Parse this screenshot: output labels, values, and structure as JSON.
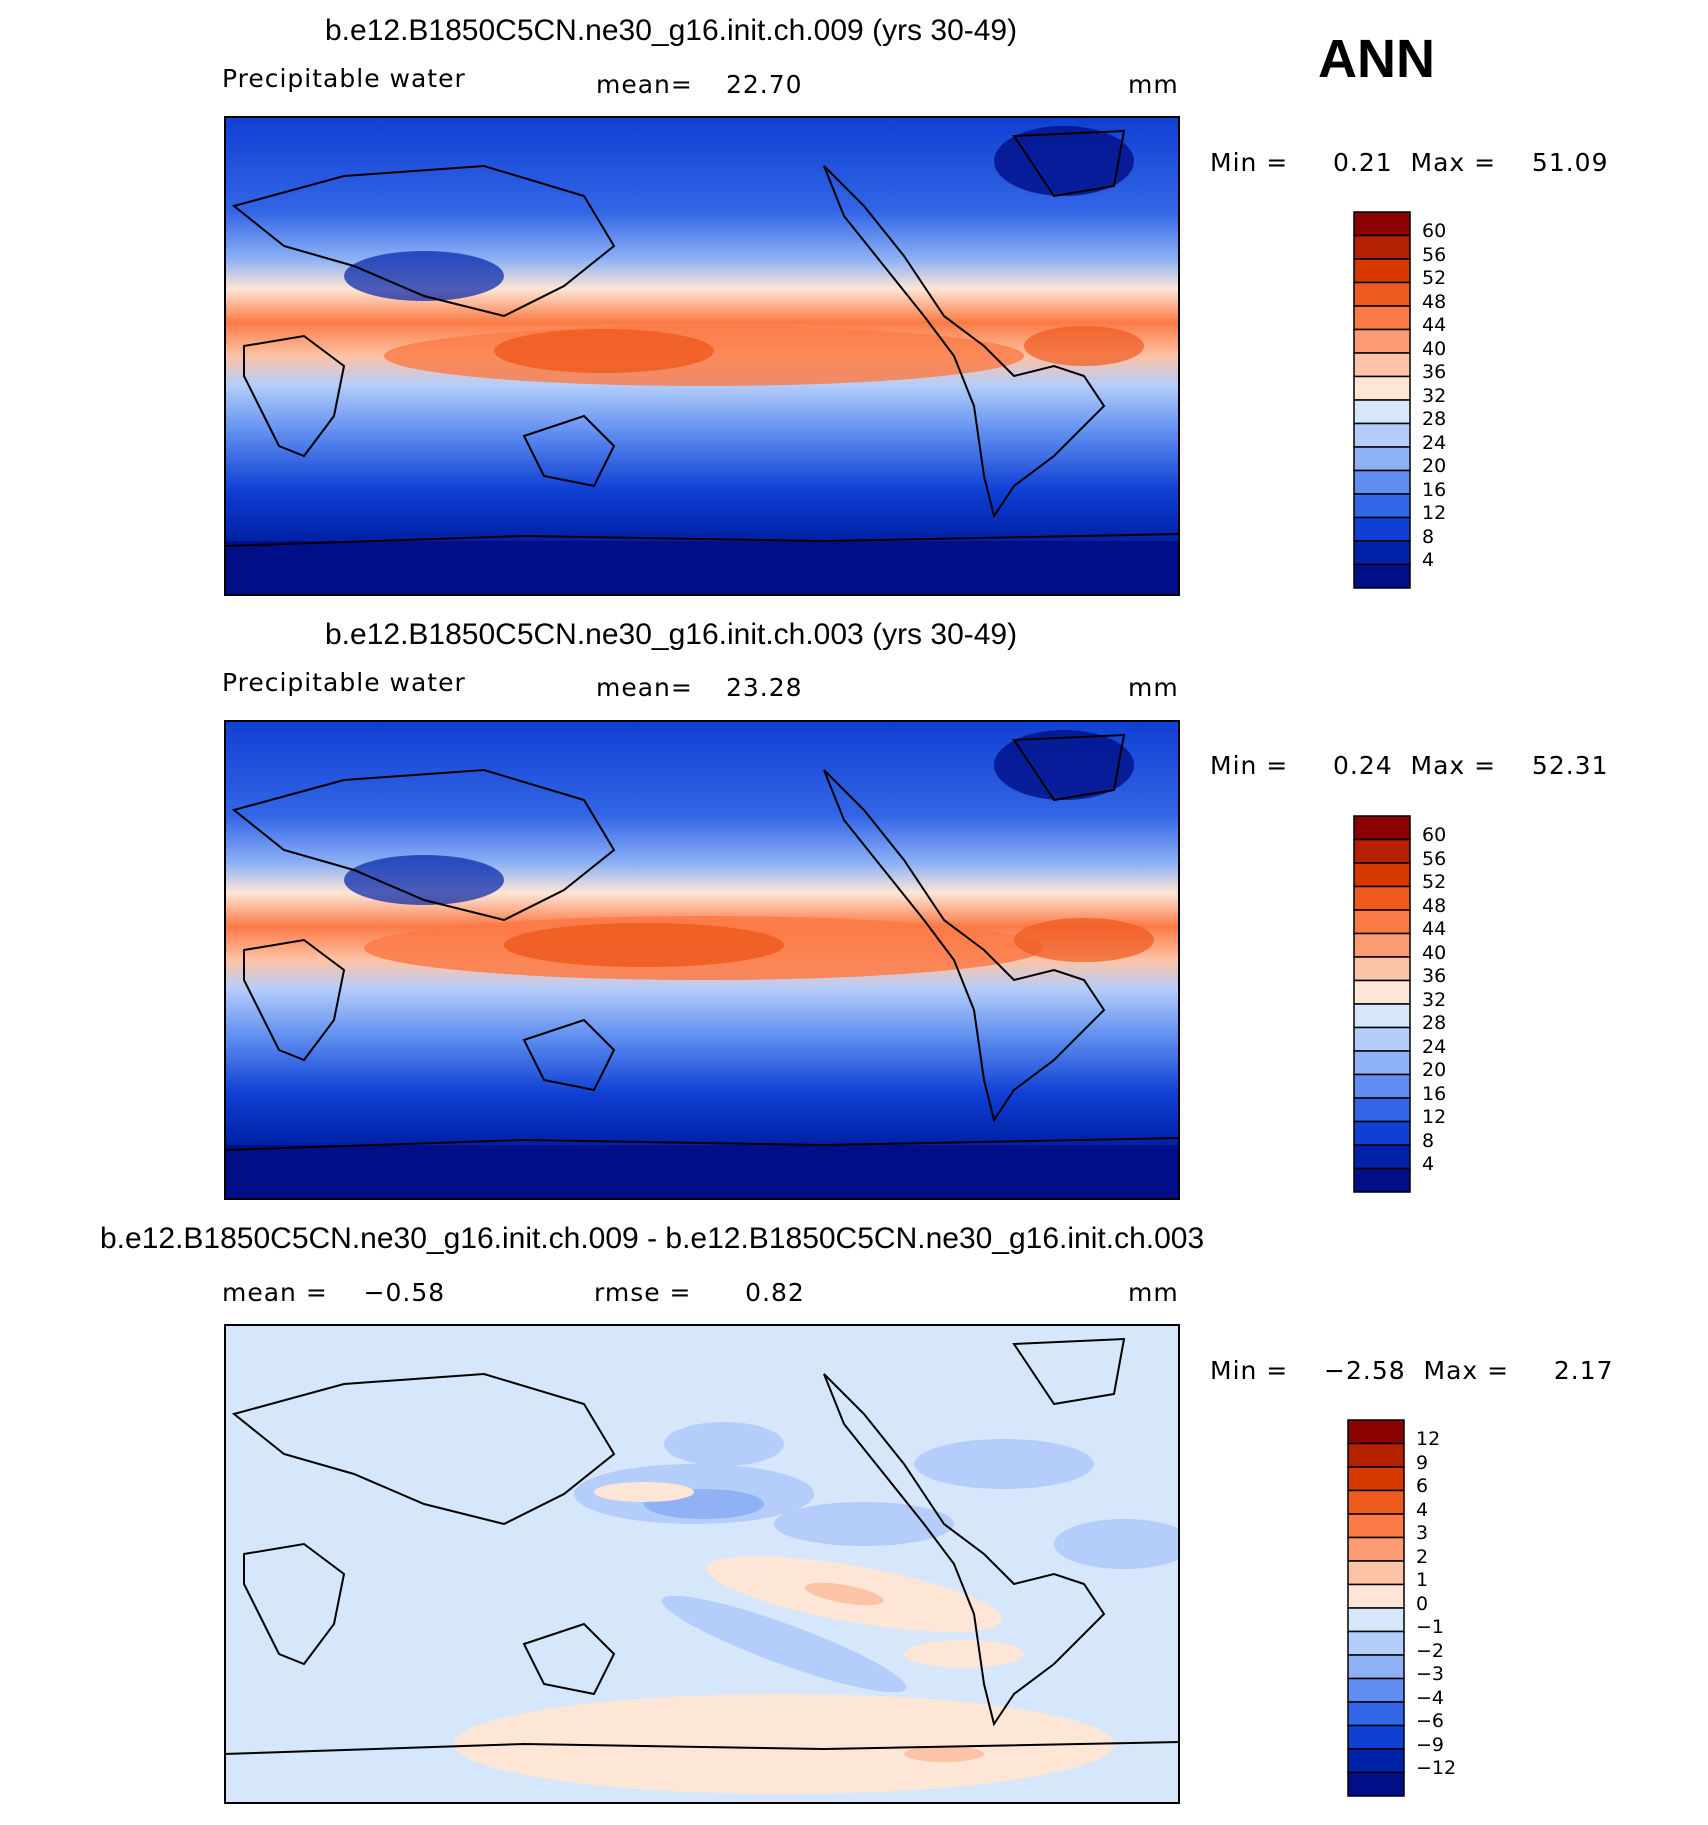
{
  "season": "ANN",
  "panels": [
    {
      "title": "b.e12.B1850C5CN.ne30_g16.init.ch.009 (yrs 30-49)",
      "variable": "Precipitable water",
      "stat_label": "mean=",
      "stat_value": "22.70",
      "units": "mm",
      "range_text": "Min =     0.21  Max =    51.09",
      "colorbar_labels": [
        "60",
        "56",
        "52",
        "48",
        "44",
        "40",
        "36",
        "32",
        "28",
        "24",
        "20",
        "16",
        "12",
        "8",
        "4"
      ]
    },
    {
      "title": "b.e12.B1850C5CN.ne30_g16.init.ch.003 (yrs 30-49)",
      "variable": "Precipitable water",
      "stat_label": "mean=",
      "stat_value": "23.28",
      "units": "mm",
      "range_text": "Min =     0.24  Max =    52.31",
      "colorbar_labels": [
        "60",
        "56",
        "52",
        "48",
        "44",
        "40",
        "36",
        "32",
        "28",
        "24",
        "20",
        "16",
        "12",
        "8",
        "4"
      ]
    },
    {
      "title": "b.e12.B1850C5CN.ne30_g16.init.ch.009 - b.e12.B1850C5CN.ne30_g16.init.ch.003",
      "mean_text": "mean =    −0.58",
      "rmse_text": "rmse =      0.82",
      "units": "mm",
      "range_text": "Min =    −2.58  Max =     2.17",
      "colorbar_labels": [
        "12",
        "9",
        "6",
        "4",
        "3",
        "2",
        "1",
        "0",
        "−1",
        "−2",
        "−3",
        "−4",
        "−6",
        "−9",
        "−12"
      ]
    }
  ],
  "colors": {
    "warm_ramp": [
      "#8b0000",
      "#b52000",
      "#d73800",
      "#ef5a1e",
      "#fb7a46",
      "#fc9c74",
      "#fdc3a6",
      "#fde6d6",
      "#d6e6fb",
      "#b5cdfa",
      "#8fb2f6",
      "#5f8ef0",
      "#3366e6",
      "#0f3fd3",
      "#0022a8",
      "#000f87"
    ],
    "land_outline": "#000000"
  }
}
